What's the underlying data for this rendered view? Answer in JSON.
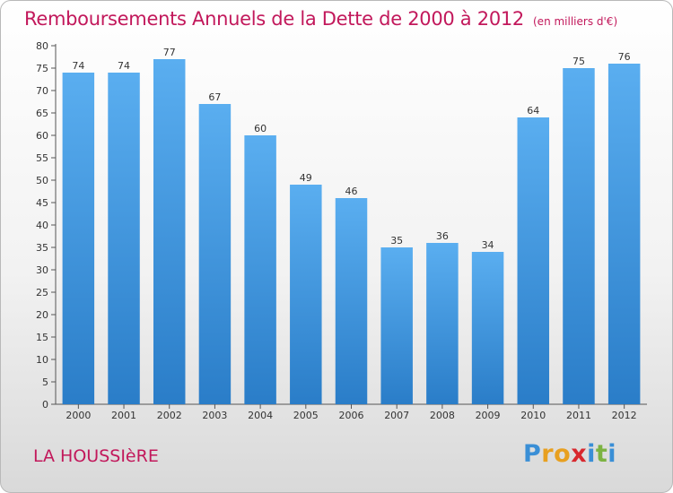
{
  "title": "Remboursements Annuels de la Dette de 2000 à 2012",
  "unit": "(en milliers d'€)",
  "commune": "LA HOUSSIèRE",
  "logo": {
    "letters": [
      "P",
      "r",
      "o",
      "x",
      "i",
      "t",
      "i"
    ],
    "colors": [
      "#3a8fd6",
      "#e8a020",
      "#e8a020",
      "#d8282e",
      "#3a8fd6",
      "#7cb342",
      "#3a8fd6"
    ]
  },
  "colors": {
    "bar_top": "#5aaef0",
    "bar_bottom": "#2a7dc8",
    "title": "#c2185b"
  },
  "chart_data": {
    "type": "bar",
    "categories": [
      "2000",
      "2001",
      "2002",
      "2003",
      "2004",
      "2005",
      "2006",
      "2007",
      "2008",
      "2009",
      "2010",
      "2011",
      "2012"
    ],
    "values": [
      74,
      74,
      77,
      67,
      60,
      49,
      46,
      35,
      36,
      34,
      64,
      75,
      76
    ],
    "ylim": [
      0,
      80
    ],
    "yticks": [
      0,
      5,
      10,
      15,
      20,
      25,
      30,
      35,
      40,
      45,
      50,
      55,
      60,
      65,
      70,
      75,
      80
    ],
    "grid": false,
    "xlabel": "",
    "ylabel": ""
  }
}
